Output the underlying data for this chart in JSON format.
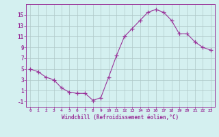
{
  "x": [
    0,
    1,
    2,
    3,
    4,
    5,
    6,
    7,
    8,
    9,
    10,
    11,
    12,
    13,
    14,
    15,
    16,
    17,
    18,
    19,
    20,
    21,
    22,
    23
  ],
  "y": [
    5,
    4.5,
    3.5,
    3,
    1.5,
    0.7,
    0.5,
    0.5,
    -0.8,
    -0.3,
    3.5,
    7.5,
    11,
    12.5,
    14,
    15.5,
    16,
    15.5,
    14,
    11.5,
    11.5,
    10,
    9,
    8.5
  ],
  "line_color": "#993399",
  "marker": "+",
  "marker_color": "#993399",
  "bg_color": "#d4f0f0",
  "grid_color": "#b0c8c8",
  "xlabel": "Windchill (Refroidissement éolien,°C)",
  "xlabel_color": "#993399",
  "tick_color": "#993399",
  "spine_color": "#993399",
  "ylim": [
    -2,
    17
  ],
  "xlim": [
    -0.5,
    23.5
  ],
  "yticks": [
    -1,
    1,
    3,
    5,
    7,
    9,
    11,
    13,
    15
  ],
  "xticks": [
    0,
    1,
    2,
    3,
    4,
    5,
    6,
    7,
    8,
    9,
    10,
    11,
    12,
    13,
    14,
    15,
    16,
    17,
    18,
    19,
    20,
    21,
    22,
    23
  ]
}
